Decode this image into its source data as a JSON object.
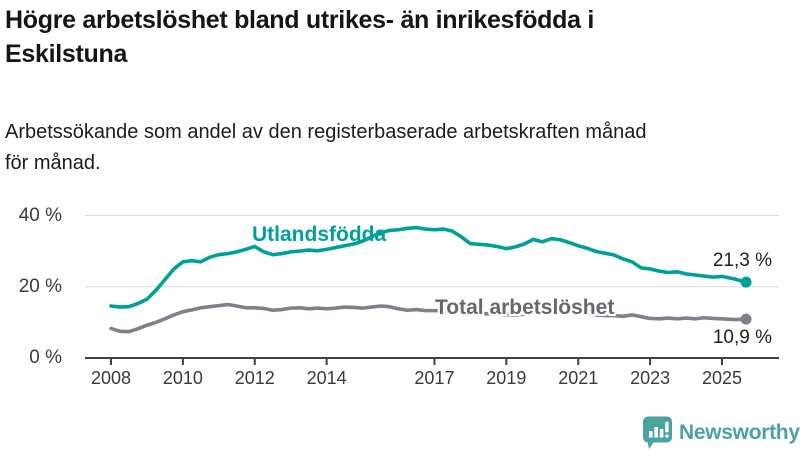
{
  "header": {
    "title_lines": [
      "Högre arbetslöshet bland utrikes- än inrikesfödda i",
      "Eskilstuna"
    ],
    "subtitle_lines": [
      "Arbetssökande som andel av den registerbaserade arbetskraften månad",
      "för månad."
    ]
  },
  "footer": {
    "brand": "Newsworthy",
    "brand_color": "#4aa2a1",
    "logo_icon": "newsworthy-speech-bubble-bar-chart-icon"
  },
  "colors": {
    "foreign_born_line": "#00a09a",
    "total_line": "#80808a",
    "total_label": "#67676f",
    "grid": "#d9d9d9",
    "axis": "#404040"
  },
  "chart_data": {
    "type": "line",
    "title": "Högre arbetslöshet bland utrikes- än inrikesfödda i Eskilstuna",
    "subtitle": "Arbetssökande som andel av den registerbaserade arbetskraften månad för månad.",
    "x_unit": "decimal_year",
    "xlim": [
      2008,
      2025.67
    ],
    "ylim": [
      0,
      40
    ],
    "grid": "horizontal",
    "legend_position": "inline-labels",
    "yticks": [
      {
        "value": 0,
        "label": "0 %"
      },
      {
        "value": 20,
        "label": "20 %"
      },
      {
        "value": 40,
        "label": "40 %"
      }
    ],
    "xticks": [
      {
        "value": 2008,
        "label": "2008"
      },
      {
        "value": 2010,
        "label": "2010"
      },
      {
        "value": 2012,
        "label": "2012"
      },
      {
        "value": 2014,
        "label": "2014"
      },
      {
        "value": 2017,
        "label": "2017"
      },
      {
        "value": 2019,
        "label": "2019"
      },
      {
        "value": 2021,
        "label": "2021"
      },
      {
        "value": 2023,
        "label": "2023"
      },
      {
        "value": 2025,
        "label": "2025"
      }
    ],
    "x": [
      2008,
      2008.25,
      2008.5,
      2008.75,
      2009,
      2009.25,
      2009.5,
      2009.75,
      2010,
      2010.25,
      2010.5,
      2010.75,
      2011,
      2011.25,
      2011.5,
      2011.75,
      2012,
      2012.25,
      2012.5,
      2012.75,
      2013,
      2013.25,
      2013.5,
      2013.75,
      2014,
      2014.25,
      2014.5,
      2014.75,
      2015,
      2015.25,
      2015.5,
      2015.75,
      2016,
      2016.25,
      2016.5,
      2016.75,
      2017,
      2017.25,
      2017.5,
      2017.75,
      2018,
      2018.25,
      2018.5,
      2018.75,
      2019,
      2019.25,
      2019.5,
      2019.75,
      2020,
      2020.25,
      2020.5,
      2020.75,
      2021,
      2021.25,
      2021.5,
      2021.75,
      2022,
      2022.25,
      2022.5,
      2022.75,
      2023,
      2023.25,
      2023.5,
      2023.75,
      2024,
      2024.25,
      2024.5,
      2024.75,
      2025,
      2025.33,
      2025.67
    ],
    "series": [
      {
        "name": "Utlandsfödda",
        "color": "#00a09a",
        "end_label": "21,3 %",
        "end_value": 21.3,
        "values": [
          14.6,
          14.3,
          14.4,
          15.3,
          16.5,
          19.0,
          22.0,
          25.0,
          27.0,
          27.3,
          27.0,
          28.3,
          29.0,
          29.3,
          29.8,
          30.5,
          31.3,
          29.8,
          29.0,
          29.3,
          29.8,
          30.0,
          30.3,
          30.1,
          30.5,
          31.0,
          31.5,
          32.0,
          32.8,
          34.0,
          35.2,
          35.8,
          36.0,
          36.4,
          36.6,
          36.2,
          36.0,
          36.2,
          35.6,
          34.0,
          32.1,
          31.9,
          31.7,
          31.3,
          30.7,
          31.2,
          32.0,
          33.3,
          32.6,
          33.5,
          33.2,
          32.4,
          31.5,
          30.8,
          29.9,
          29.4,
          28.9,
          27.8,
          27.0,
          25.3,
          25.0,
          24.4,
          24.0,
          24.2,
          23.6,
          23.3,
          23.0,
          22.7,
          22.9,
          22.2,
          21.3
        ]
      },
      {
        "name": "Total arbetslöshet",
        "color": "#80808a",
        "end_label": "10,9 %",
        "end_value": 10.9,
        "values": [
          8.3,
          7.5,
          7.4,
          8.2,
          9.2,
          10.0,
          11.0,
          12.1,
          13.0,
          13.5,
          14.1,
          14.4,
          14.7,
          15.0,
          14.6,
          14.1,
          14.1,
          13.9,
          13.4,
          13.6,
          14.0,
          14.1,
          13.8,
          14.0,
          13.8,
          14.0,
          14.3,
          14.2,
          14.0,
          14.3,
          14.6,
          14.4,
          13.8,
          13.4,
          13.6,
          13.3,
          13.3,
          13.2,
          13.0,
          12.9,
          12.7,
          12.5,
          12.4,
          12.3,
          12.2,
          12.1,
          12.3,
          12.6,
          13.0,
          13.6,
          13.4,
          13.2,
          12.9,
          12.5,
          12.1,
          11.9,
          11.9,
          11.7,
          12.1,
          11.6,
          11.1,
          11.0,
          11.2,
          11.0,
          11.2,
          11.0,
          11.3,
          11.1,
          11.0,
          10.8,
          10.9
        ]
      }
    ]
  }
}
